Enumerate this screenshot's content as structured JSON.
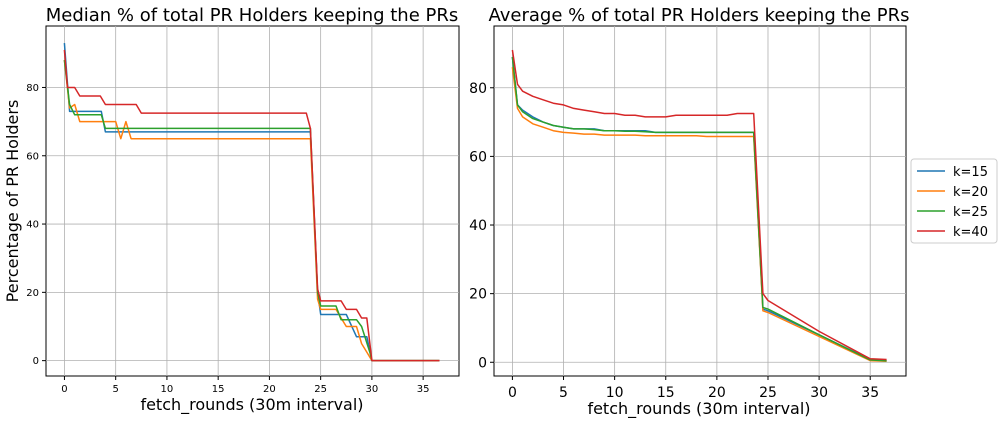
{
  "chart_data": [
    {
      "type": "line",
      "title": "Median % of total PR Holders keeping the PRs",
      "xlabel": "fetch_rounds (30m interval)",
      "ylabel": "Percentage of PR Holders",
      "xlim": [
        -1.8,
        38.5
      ],
      "ylim": [
        -4.5,
        98
      ],
      "xticks": [
        0,
        5,
        10,
        15,
        20,
        25,
        30,
        35
      ],
      "yticks": [
        0,
        20,
        40,
        60,
        80
      ],
      "grid": true,
      "series": [
        {
          "name": "k=15",
          "color": "#1f77b4",
          "x": [
            0,
            0.5,
            1,
            3.6,
            4,
            23.6,
            24,
            24.7,
            25,
            27,
            27.5,
            28.5,
            29.5,
            30,
            36.6
          ],
          "y": [
            93,
            73,
            73,
            73,
            67,
            67,
            67,
            20,
            13.5,
            13.5,
            13.5,
            7,
            7,
            0,
            0
          ]
        },
        {
          "name": "k=20",
          "color": "#ff7f0e",
          "x": [
            0,
            0.5,
            1,
            1.5,
            3,
            4,
            5,
            5.5,
            6,
            6.5,
            24,
            24.7,
            25,
            26.5,
            27,
            27.5,
            28.5,
            29,
            29.5,
            30,
            36.6
          ],
          "y": [
            88,
            74,
            75,
            70,
            70,
            70,
            70,
            65,
            70,
            65,
            65,
            18,
            15,
            15,
            12.5,
            10,
            10,
            5,
            2.5,
            0,
            0
          ]
        },
        {
          "name": "k=25",
          "color": "#2ca02c",
          "x": [
            0,
            0.5,
            1,
            3.6,
            4,
            23.6,
            24,
            24.7,
            25,
            26.5,
            27,
            28.5,
            29,
            29.8,
            30,
            36.6
          ],
          "y": [
            88,
            75,
            72,
            72,
            68,
            68,
            68,
            20,
            16,
            16,
            12,
            12,
            10,
            2.5,
            0,
            0
          ]
        },
        {
          "name": "k=40",
          "color": "#d62728",
          "x": [
            0,
            0.3,
            1,
            1.5,
            3.5,
            4,
            7,
            7.5,
            23.6,
            24,
            24.7,
            25,
            27,
            27.5,
            28.5,
            29,
            29.5,
            30,
            36.6
          ],
          "y": [
            91,
            80,
            80,
            77.5,
            77.5,
            75,
            75,
            72.5,
            72.5,
            68,
            21,
            17.5,
            17.5,
            15,
            15,
            12.5,
            12.5,
            0,
            0
          ]
        }
      ]
    },
    {
      "type": "line",
      "title": "Average % of total PR Holders keeping the PRs",
      "xlabel": "fetch_rounds (30m interval)",
      "ylabel": "",
      "xlim": [
        -1.8,
        38.5
      ],
      "ylim": [
        -4,
        98
      ],
      "xticks": [
        0,
        5,
        10,
        15,
        20,
        25,
        30,
        35
      ],
      "yticks": [
        0,
        20,
        40,
        60,
        80
      ],
      "grid": true,
      "series": [
        {
          "name": "k=15",
          "color": "#1f77b4",
          "x": [
            0,
            0.5,
            1,
            2,
            3,
            4,
            5,
            6,
            7,
            8,
            9,
            10,
            11,
            12,
            13,
            14,
            15,
            16,
            17,
            18,
            19,
            20,
            21,
            22,
            23,
            23.6,
            24.5,
            25,
            30,
            35,
            36.6
          ],
          "y": [
            89,
            75,
            73.5,
            71.5,
            70,
            69,
            68.5,
            68,
            68,
            68,
            67.5,
            67.5,
            67.5,
            67.5,
            67.5,
            67,
            67,
            67,
            67,
            67,
            67,
            67,
            67,
            67,
            67,
            67,
            15.5,
            15,
            8,
            0.8,
            0.5
          ]
        },
        {
          "name": "k=20",
          "color": "#ff7f0e",
          "x": [
            0,
            0.5,
            1,
            2,
            3,
            4,
            5,
            6,
            7,
            8,
            9,
            10,
            11,
            12,
            13,
            14,
            15,
            16,
            17,
            18,
            19,
            20,
            21,
            22,
            23,
            23.6,
            24.5,
            25,
            30,
            35,
            36.6
          ],
          "y": [
            86,
            74,
            71.5,
            69.5,
            68.5,
            67.5,
            67,
            66.8,
            66.5,
            66.5,
            66.2,
            66.2,
            66.2,
            66.2,
            66,
            66,
            66,
            66,
            66,
            66,
            65.8,
            65.8,
            65.8,
            65.8,
            65.8,
            65.8,
            15,
            14.5,
            7.5,
            0.5,
            0.3
          ]
        },
        {
          "name": "k=25",
          "color": "#2ca02c",
          "x": [
            0,
            0.5,
            1,
            2,
            3,
            4,
            5,
            6,
            7,
            8,
            9,
            10,
            11,
            12,
            13,
            14,
            15,
            16,
            17,
            18,
            19,
            20,
            21,
            22,
            23,
            23.6,
            24.5,
            25,
            30,
            35,
            36.6
          ],
          "y": [
            89,
            75,
            73,
            71,
            70,
            69,
            68.5,
            68,
            68,
            67.8,
            67.5,
            67.5,
            67.3,
            67.3,
            67.2,
            67,
            67,
            67,
            67,
            67,
            67,
            67,
            67,
            67,
            67,
            67,
            16,
            15.5,
            8,
            0.7,
            0.4
          ]
        },
        {
          "name": "k=40",
          "color": "#d62728",
          "x": [
            0,
            0.5,
            1,
            2,
            3,
            4,
            5,
            6,
            7,
            8,
            9,
            10,
            11,
            12,
            13,
            14,
            15,
            16,
            17,
            18,
            19,
            20,
            21,
            22,
            23,
            23.6,
            24.5,
            25,
            30,
            35,
            36.6
          ],
          "y": [
            91,
            81,
            79,
            77.5,
            76.5,
            75.5,
            75,
            74,
            73.5,
            73,
            72.5,
            72.5,
            72,
            72,
            71.5,
            71.5,
            71.5,
            72,
            72,
            72,
            72,
            72,
            72,
            72.5,
            72.5,
            72.5,
            20,
            18,
            9,
            1,
            0.8
          ]
        }
      ]
    }
  ],
  "legend": {
    "placement": "right",
    "entries": [
      {
        "label": "k=15",
        "color": "#1f77b4"
      },
      {
        "label": "k=20",
        "color": "#ff7f0e"
      },
      {
        "label": "k=25",
        "color": "#2ca02c"
      },
      {
        "label": "k=40",
        "color": "#d62728"
      }
    ]
  }
}
